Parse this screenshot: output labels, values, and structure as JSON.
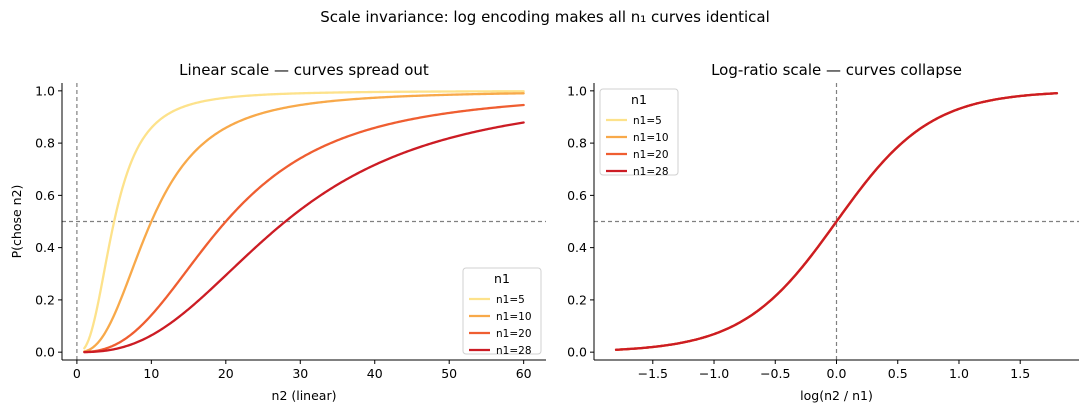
{
  "figure": {
    "suptitle": "Scale invariance: log encoding makes all n₁ curves identical"
  },
  "chart_data": [
    {
      "type": "line",
      "title": "Linear scale — curves spread out",
      "xlabel": "n2 (linear)",
      "ylabel": "P(chose n2)",
      "xlim": [
        -2,
        63
      ],
      "ylim": [
        -0.03,
        1.03
      ],
      "xticks": [
        0,
        10,
        20,
        30,
        40,
        50,
        60
      ],
      "xtick_labels": [
        "0",
        "10",
        "20",
        "30",
        "40",
        "50",
        "60"
      ],
      "yticks": [
        0.0,
        0.2,
        0.4,
        0.6,
        0.8,
        1.0
      ],
      "ytick_labels": [
        "0.0",
        "0.2",
        "0.4",
        "0.6",
        "0.8",
        "1.0"
      ],
      "reference_lines": {
        "x": 0,
        "y": 0.5
      },
      "x_range": [
        1,
        60
      ],
      "model": "P = 1 / (1 + exp(-2.6 * ln(n2 / n1)))",
      "slope": 2.6,
      "legend": {
        "title": "n1",
        "location": "lower right"
      },
      "series": [
        {
          "name": "n1=5",
          "n1": 5,
          "color": "#fde28b"
        },
        {
          "name": "n1=10",
          "n1": 10,
          "color": "#f8a94a"
        },
        {
          "name": "n1=20",
          "n1": 20,
          "color": "#ef5e31"
        },
        {
          "name": "n1=28",
          "n1": 28,
          "color": "#cc1c24"
        }
      ]
    },
    {
      "type": "line",
      "title": "Log-ratio scale — curves collapse",
      "xlabel": "log(n2 / n1)",
      "ylabel": "",
      "xlim": [
        -1.98,
        1.98
      ],
      "ylim": [
        -0.03,
        1.03
      ],
      "xticks": [
        -1.5,
        -1.0,
        -0.5,
        0.0,
        0.5,
        1.0,
        1.5
      ],
      "xtick_labels": [
        "−1.5",
        "−1.0",
        "−0.5",
        "0.0",
        "0.5",
        "1.0",
        "1.5"
      ],
      "yticks": [
        0.0,
        0.2,
        0.4,
        0.6,
        0.8,
        1.0
      ],
      "ytick_labels": [
        "0.0",
        "0.2",
        "0.4",
        "0.6",
        "0.8",
        "1.0"
      ],
      "reference_lines": {
        "x": 0,
        "y": 0.5
      },
      "x_range": [
        -1.8,
        1.8
      ],
      "model": "P = 1 / (1 + exp(-2.6 * x))",
      "slope": 2.6,
      "legend": {
        "title": "n1",
        "location": "upper left"
      },
      "series": [
        {
          "name": "n1=5",
          "n1": 5,
          "color": "#fde28b"
        },
        {
          "name": "n1=10",
          "n1": 10,
          "color": "#f8a94a"
        },
        {
          "name": "n1=20",
          "n1": 20,
          "color": "#ef5e31"
        },
        {
          "name": "n1=28",
          "n1": 28,
          "color": "#cc1c24"
        }
      ]
    }
  ]
}
